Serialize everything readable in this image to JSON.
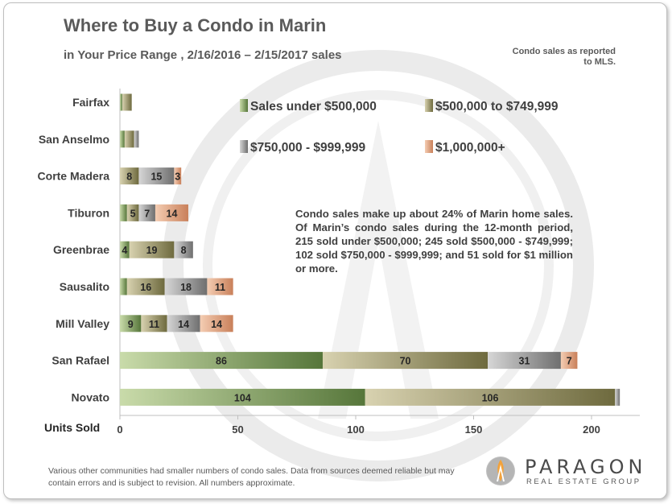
{
  "title": "Where to Buy a Condo in Marin",
  "subtitle": "in Your Price Range , 2/16/2016 – 2/15/2017 sales",
  "source_note": "Condo sales as reported to MLS.",
  "annotation": "Condo sales make up about 24% of Marin home sales. Of Marin’s condo sales during the 12-month period, 215 sold under $500,000; 245 sold $500,000 - $749,999; 102 sold $750,000 - $999,999; and 51 sold for $1 million  or more.",
  "footer": "Various other communities had smaller numbers of condo sales. Data from  sources deemed reliable but may contain errors and is subject to revision. All numbers approximate.",
  "logo": {
    "name": "PARAGON",
    "tagline": "REAL ESTATE GROUP"
  },
  "colors": {
    "under_500k": "#8fa968",
    "500k_750k": "#a9a27a",
    "750k_1m": "#a6a6a6",
    "over_1m": "#e3a882",
    "text": "#404040"
  },
  "chart_data": {
    "type": "bar",
    "orientation": "horizontal",
    "stacked": true,
    "title": "Where to Buy a Condo in Marin",
    "xlabel": "Units Sold",
    "xlim": [
      0,
      220
    ],
    "xticks": [
      0,
      50,
      100,
      150,
      200
    ],
    "legend_placement": "top-right",
    "grid": false,
    "categories": [
      "Fairfax",
      "San Anselmo",
      "Corte Madera",
      "Tiburon",
      "Greenbrae",
      "Sausalito",
      "Mill Valley",
      "San Rafael",
      "Novato"
    ],
    "series": [
      {
        "name": "Sales under $500,000",
        "values": [
          1,
          2,
          0,
          3,
          4,
          3,
          9,
          86,
          104
        ],
        "labels": [
          "",
          "",
          "",
          "",
          "4",
          "",
          "9",
          "86",
          "104"
        ]
      },
      {
        "name": "$500,000 to $749,999",
        "values": [
          4,
          4,
          8,
          5,
          19,
          16,
          11,
          70,
          106
        ],
        "labels": [
          "",
          "",
          "8",
          "5",
          "19",
          "16",
          "11",
          "70",
          "106"
        ]
      },
      {
        "name": "$750,000 - $999,999",
        "values": [
          0,
          2,
          15,
          7,
          8,
          18,
          14,
          31,
          2
        ],
        "labels": [
          "",
          "",
          "15",
          "7",
          "8",
          "18",
          "14",
          "31",
          ""
        ]
      },
      {
        "name": "$1,000,000+",
        "values": [
          0,
          0,
          3,
          14,
          0,
          11,
          14,
          7,
          0
        ],
        "labels": [
          "",
          "",
          "3",
          "14",
          "",
          "11",
          "14",
          "7",
          ""
        ]
      }
    ]
  }
}
